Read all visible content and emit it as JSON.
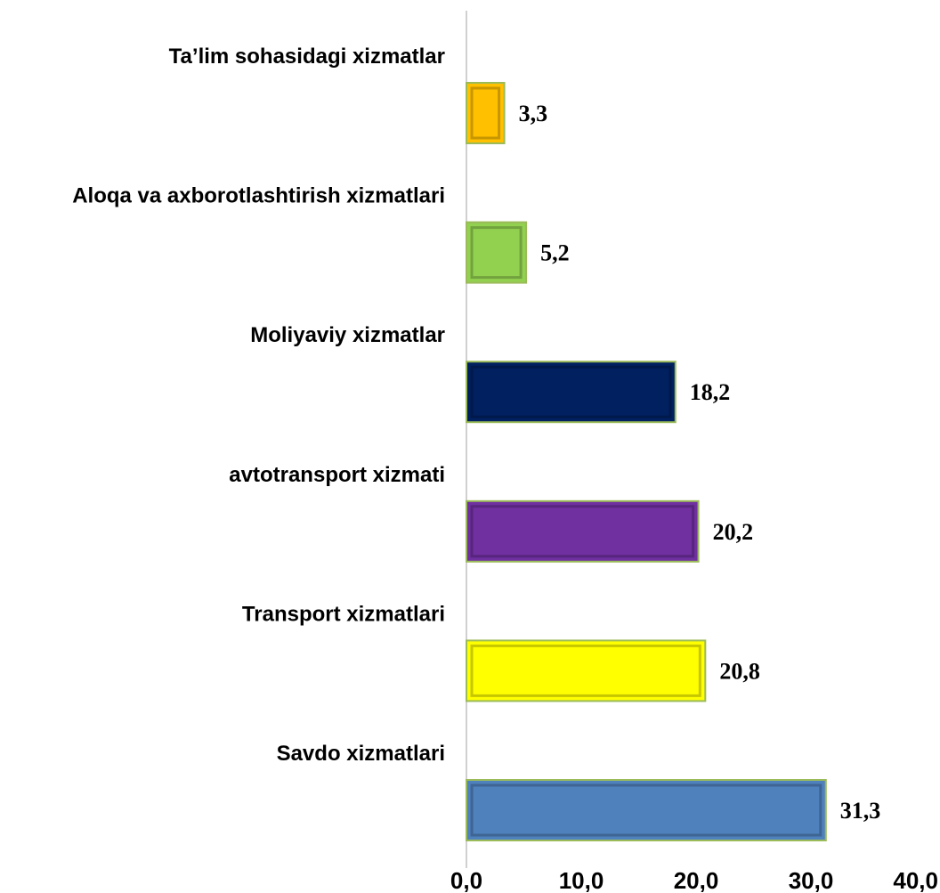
{
  "chart_data": {
    "type": "bar",
    "orientation": "horizontal",
    "categories": [
      "Savdo xizmatlari",
      "Transport xizmatlari",
      "avtotransport xizmati",
      "Moliyaviy xizmatlar",
      "Aloqa va axborotlashtirish xizmatlari",
      "Ta’lim sohasidagi xizmatlar"
    ],
    "values": [
      31.3,
      20.8,
      20.2,
      18.2,
      5.2,
      3.3
    ],
    "value_labels": [
      "31,3",
      "20,8",
      "20,2",
      "18,2",
      "5,2",
      "3,3"
    ],
    "colors": [
      "#4f81bd",
      "#ffff00",
      "#7030a0",
      "#002060",
      "#92d050",
      "#ffc000"
    ],
    "xlim": [
      0,
      40
    ],
    "xticks": [
      "0,0",
      "10,0",
      "20,0",
      "30,0",
      "40,0"
    ],
    "title": "",
    "xlabel": "",
    "ylabel": "",
    "grid": false,
    "legend": "none"
  }
}
